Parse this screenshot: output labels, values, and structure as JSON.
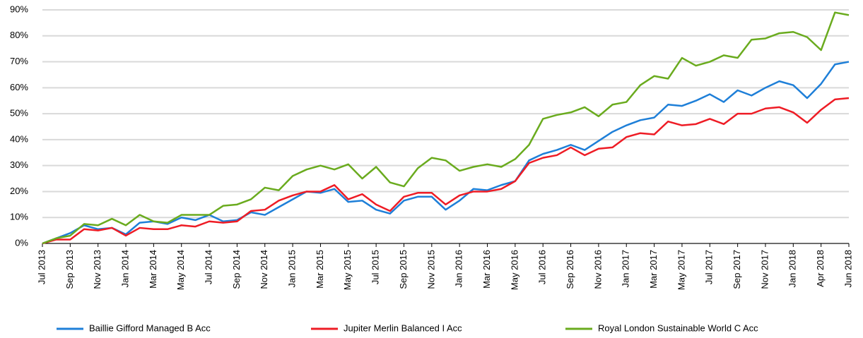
{
  "chart_data": {
    "type": "line",
    "categories": [
      "Jul 2013",
      null,
      "Sep 2013",
      null,
      "Nov 2013",
      null,
      "Jan 2014",
      null,
      "Mar 2014",
      null,
      "May 2014",
      null,
      "Jul 2014",
      null,
      "Sep 2014",
      null,
      "Nov 2014",
      null,
      "Jan 2015",
      null,
      "Mar 2015",
      null,
      "May 2015",
      null,
      "Jul 2015",
      null,
      "Sep 2015",
      null,
      "Nov 2015",
      null,
      "Jan 2016",
      null,
      "Mar 2016",
      null,
      "May 2016",
      null,
      "Jul 2016",
      null,
      "Sep 2016",
      null,
      "Nov 2016",
      null,
      "Jan 2017",
      null,
      "Mar 2017",
      null,
      "May 2017",
      null,
      "Jul 2017",
      null,
      "Sep 2017",
      null,
      "Nov 2017",
      null,
      "Jan 2018",
      null,
      "Apr 2018",
      null,
      "Jun 2018"
    ],
    "series": [
      {
        "name": "Baillie Gifford Managed B Acc",
        "color": "#1e7fd8",
        "values": [
          0,
          2,
          4,
          7,
          5.5,
          6,
          3.5,
          8,
          8.5,
          7.5,
          10,
          9,
          11,
          8.5,
          9,
          12,
          11,
          14,
          17,
          20,
          19.5,
          21,
          16,
          16.5,
          13,
          11.5,
          16.5,
          18,
          18,
          13,
          16.5,
          21,
          20.5,
          22.5,
          24,
          32,
          34.5,
          36,
          38,
          36,
          39.5,
          43,
          45.5,
          47.5,
          48.5,
          53.5,
          53,
          55,
          57.5,
          54.5,
          59,
          57,
          60,
          62.5,
          61,
          56,
          61.5,
          69,
          70
        ]
      },
      {
        "name": "Jupiter Merlin Balanced I Acc",
        "color": "#ee1c25",
        "values": [
          0,
          1.5,
          1.5,
          5.5,
          5,
          6,
          3,
          6,
          5.5,
          5.5,
          7,
          6.5,
          8.5,
          8,
          8.5,
          12.5,
          13,
          16.5,
          18.5,
          20,
          20,
          22.5,
          17,
          19,
          15,
          12.5,
          18,
          19.5,
          19.5,
          15,
          18.5,
          20,
          20,
          21,
          24,
          31,
          33,
          34,
          37,
          34,
          36.5,
          37,
          41,
          42.5,
          42,
          47,
          45.5,
          46,
          48,
          46,
          50,
          50,
          52,
          52.5,
          50.5,
          46.5,
          51.5,
          55.5,
          56
        ]
      },
      {
        "name": "Royal London Sustainable World C Acc",
        "color": "#6aab1e",
        "values": [
          0,
          2,
          3,
          7.5,
          7,
          9.5,
          7,
          11,
          8.5,
          8,
          11,
          11,
          11,
          14.5,
          15,
          17,
          21.5,
          20.5,
          26,
          28.5,
          30,
          28.5,
          30.5,
          25,
          29.5,
          23.5,
          22,
          29,
          33,
          32,
          28,
          29.5,
          30.5,
          29.5,
          32.5,
          38,
          48,
          49.5,
          50.5,
          52.5,
          49,
          53.5,
          54.5,
          61,
          64.5,
          63.5,
          71.5,
          68.5,
          70,
          72.5,
          71.5,
          78.5,
          79,
          81,
          81.5,
          79.5,
          74.5,
          89,
          88
        ]
      }
    ],
    "ylim": [
      0,
      90
    ],
    "yticks": [
      {
        "value": 0,
        "label": "0%"
      },
      {
        "value": 10,
        "label": "10%"
      },
      {
        "value": 20,
        "label": "20%"
      },
      {
        "value": 30,
        "label": "30%"
      },
      {
        "value": 40,
        "label": "40%"
      },
      {
        "value": 50,
        "label": "50%"
      },
      {
        "value": 60,
        "label": "60%"
      },
      {
        "value": 70,
        "label": "70%"
      },
      {
        "value": 80,
        "label": "80%"
      },
      {
        "value": 90,
        "label": "90%"
      }
    ],
    "grid": true,
    "legend": "bottom"
  }
}
